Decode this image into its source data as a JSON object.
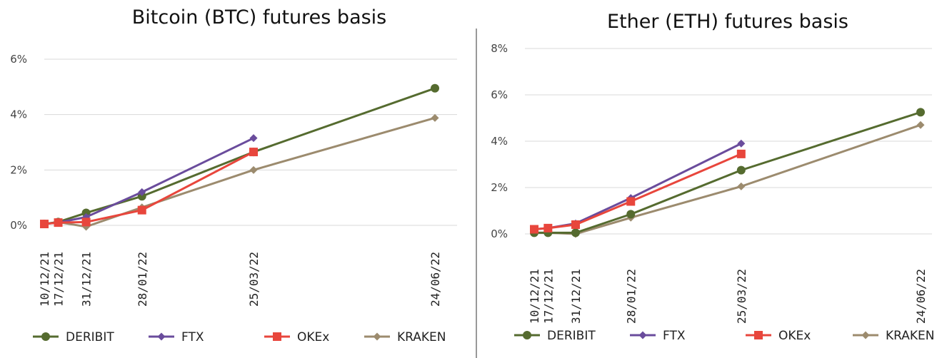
{
  "colors": {
    "DERIBIT": "#556b2f",
    "FTX": "#6a4c9c",
    "OKEx": "#e8463c",
    "KRAKEN": "#9c8b6e",
    "divider": "#999999"
  },
  "chart_data": [
    {
      "type": "line",
      "title": "Bitcoin (BTC) futures basis",
      "xlabel": "",
      "ylabel": "",
      "x_ticks": [
        "10/12/21",
        "17/12/21",
        "31/12/21",
        "28/01/22",
        "25/03/22",
        "24/06/22"
      ],
      "yticks": [
        "0%",
        "2%",
        "4%",
        "6%"
      ],
      "ylim": [
        0,
        6
      ],
      "grid": true,
      "legend_position": "bottom",
      "series": [
        {
          "name": "DERIBIT",
          "marker": "circle",
          "x": [
            "10/12/21",
            "17/12/21",
            "31/12/21",
            "28/01/22",
            "25/03/22",
            "24/06/22"
          ],
          "y": [
            0.05,
            0.12,
            0.45,
            1.05,
            2.65,
            4.95
          ]
        },
        {
          "name": "FTX",
          "marker": "diamond",
          "x": [
            "10/12/21",
            "17/12/21",
            "31/12/21",
            "28/01/22",
            "25/03/22"
          ],
          "y": [
            0.05,
            0.1,
            0.3,
            1.2,
            3.15
          ]
        },
        {
          "name": "OKEx",
          "marker": "square",
          "x": [
            "10/12/21",
            "17/12/21",
            "31/12/21",
            "28/01/22",
            "25/03/22"
          ],
          "y": [
            0.05,
            0.1,
            0.12,
            0.55,
            2.65
          ]
        },
        {
          "name": "KRAKEN",
          "marker": "diamond",
          "x": [
            "10/12/21",
            "17/12/21",
            "31/12/21",
            "28/01/22",
            "25/03/22",
            "24/06/22"
          ],
          "y": [
            0.05,
            0.12,
            -0.05,
            0.65,
            2.0,
            3.88
          ]
        }
      ]
    },
    {
      "type": "line",
      "title": "Ether (ETH) futures basis",
      "xlabel": "",
      "ylabel": "",
      "x_ticks": [
        "10/12/21",
        "17/12/21",
        "31/12/21",
        "28/01/22",
        "25/03/22",
        "24/06/22"
      ],
      "yticks": [
        "0%",
        "2%",
        "4%",
        "6%",
        "8%"
      ],
      "ylim": [
        0,
        8
      ],
      "grid": true,
      "legend_position": "bottom",
      "series": [
        {
          "name": "DERIBIT",
          "marker": "circle",
          "x": [
            "10/12/21",
            "17/12/21",
            "31/12/21",
            "28/01/22",
            "25/03/22",
            "24/06/22"
          ],
          "y": [
            0.05,
            0.05,
            0.05,
            0.85,
            2.75,
            5.25
          ]
        },
        {
          "name": "FTX",
          "marker": "diamond",
          "x": [
            "10/12/21",
            "17/12/21",
            "31/12/21",
            "28/01/22",
            "25/03/22"
          ],
          "y": [
            0.2,
            0.25,
            0.45,
            1.55,
            3.9
          ]
        },
        {
          "name": "OKEx",
          "marker": "square",
          "x": [
            "10/12/21",
            "17/12/21",
            "31/12/21",
            "28/01/22",
            "25/03/22"
          ],
          "y": [
            0.2,
            0.25,
            0.4,
            1.4,
            3.45
          ]
        },
        {
          "name": "KRAKEN",
          "marker": "diamond",
          "x": [
            "10/12/21",
            "17/12/21",
            "31/12/21",
            "28/01/22",
            "25/03/22",
            "24/06/22"
          ],
          "y": [
            0.05,
            0.05,
            0.0,
            0.7,
            2.05,
            4.7
          ]
        }
      ]
    }
  ]
}
